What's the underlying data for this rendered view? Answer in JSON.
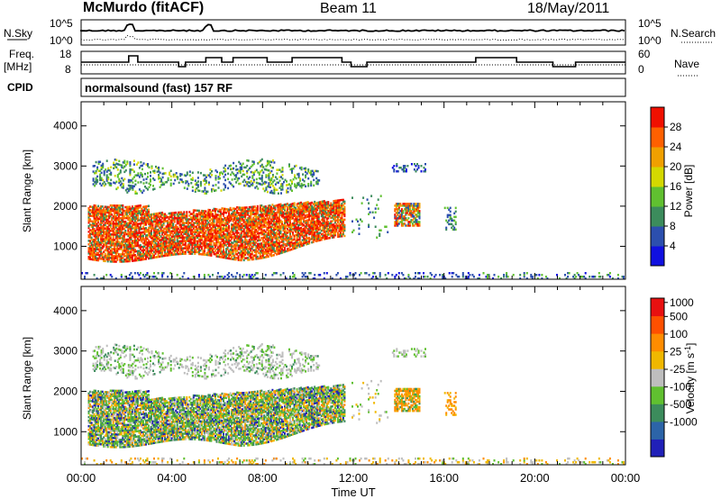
{
  "header": {
    "station": "McMurdo (fitACF)",
    "beam": "Beam 11",
    "date": "18/May/2011"
  },
  "noise_panel": {
    "left_label": "N.Sky",
    "left_ticks": [
      "10^5",
      "10^0"
    ],
    "right_label": "N.Search",
    "right_ticks": [
      "10^5",
      "10^0"
    ]
  },
  "freq_panel": {
    "left_label_1": "Freq.",
    "left_label_2": "[MHz]",
    "left_ticks": [
      "18",
      "8"
    ],
    "right_label": "Nave",
    "right_ticks": [
      "60",
      "0"
    ]
  },
  "cpid": {
    "label": "CPID",
    "text": "normalsound (fast) 157 RF"
  },
  "colors": {
    "power_scale": [
      "#1010e0",
      "#2c4fae",
      "#3c8c5c",
      "#60c030",
      "#d4d800",
      "#f0a000",
      "#ff6000",
      "#f01000"
    ],
    "velocity_scale": [
      "#2020b8",
      "#2c64a8",
      "#3c8c5c",
      "#60c030",
      "#bebebe",
      "#f0b800",
      "#ff8c00",
      "#ff5000",
      "#e81010"
    ]
  },
  "chart_data": [
    {
      "type": "heatmap",
      "title": "",
      "xlabel": "",
      "ylabel": "Slant Range [km]",
      "x_ticks": [
        "00:00",
        "04:00",
        "08:00",
        "12:00",
        "16:00",
        "20:00",
        "00:00"
      ],
      "y_ticks": [
        "1000",
        "2000",
        "3000",
        "4000"
      ],
      "ylim": [
        180,
        4600
      ],
      "colorbar": {
        "label": "Power [dB]",
        "ticks": [
          "4",
          "8",
          "12",
          "16",
          "20",
          "24",
          "28"
        ],
        "range": [
          0,
          32
        ]
      }
    },
    {
      "type": "heatmap",
      "title": "",
      "xlabel": "Time UT",
      "ylabel": "Slant Range [km]",
      "x_ticks": [
        "00:00",
        "04:00",
        "08:00",
        "12:00",
        "16:00",
        "20:00",
        "00:00"
      ],
      "y_ticks": [
        "1000",
        "2000",
        "3000",
        "4000"
      ],
      "ylim": [
        180,
        4600
      ],
      "colorbar": {
        "label": "Velocity [m s^-1]",
        "ticks": [
          "1000",
          "500",
          "100",
          "25",
          "-25",
          "-100",
          "-500",
          "-1000"
        ]
      }
    }
  ]
}
